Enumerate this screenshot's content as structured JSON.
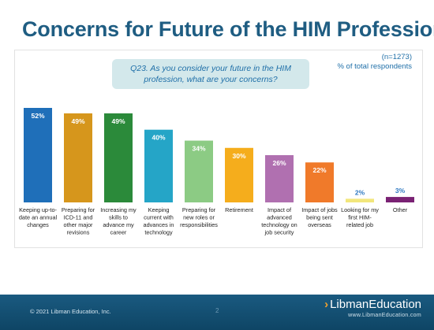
{
  "slide": {
    "title": "Concerns for Future of the HIM Profession",
    "sample_note": "(n=1273)",
    "unit_note": "% of total respondents",
    "question": "Q23. As you consider your future in the HIM profession, what are your concerns?"
  },
  "chart_data": {
    "type": "bar",
    "categories": [
      "Keeping up-to-date an annual changes",
      "Preparing for ICD-11 and other major revisions",
      "Increasing my skills to advance my career",
      "Keeping current with advances in technology",
      "Preparing for new roles or responsibilities",
      "Retirement",
      "Impact of advanced technology on job security",
      "Impact of jobs being sent overseas",
      "Looking for my first HIM-related job",
      "Other"
    ],
    "category_lines": [
      [
        "Keeping up-to-",
        "date an annual",
        "changes"
      ],
      [
        "Preparing for",
        "ICD-11 and",
        "other major",
        "revisions"
      ],
      [
        "Increasing my",
        "skills to",
        "advance my",
        "career"
      ],
      [
        "Keeping",
        "current with",
        "advances in",
        "technology"
      ],
      [
        "Preparing for",
        "new roles or",
        "responsibilities"
      ],
      [
        "Retirement"
      ],
      [
        "Impact of",
        "advanced",
        "technology on",
        "job security"
      ],
      [
        "Impact of jobs",
        "being sent",
        "overseas"
      ],
      [
        "Looking for my",
        "first HIM-",
        "related job"
      ],
      [
        "Other"
      ]
    ],
    "values": [
      52,
      49,
      49,
      40,
      34,
      30,
      26,
      22,
      2,
      3
    ],
    "value_labels": [
      "52%",
      "49%",
      "49%",
      "40%",
      "34%",
      "30%",
      "26%",
      "22%",
      "2%",
      "3%"
    ],
    "colors": [
      "#1f6fb9",
      "#d6961c",
      "#2b8a3a",
      "#25a5c7",
      "#8ccb84",
      "#f5ad1c",
      "#b070b0",
      "#f07a2a",
      "#f2e67c",
      "#7a2274"
    ],
    "label_colors": [
      "#ffffff",
      "#ffffff",
      "#ffffff",
      "#ffffff",
      "#ffffff",
      "#ffffff",
      "#ffffff",
      "#ffffff",
      "#2f79c2",
      "#2f79c2"
    ],
    "ylim": [
      0,
      52
    ],
    "grid": false,
    "xlabel": "",
    "ylabel": ""
  },
  "footer": {
    "copyright": "© 2021 Libman Education, Inc.",
    "page_number": "2",
    "brand_chevron": "›",
    "brand_word1": "Libman",
    "brand_word2": "Education",
    "brand_url": "www.LibmanEducation.com"
  }
}
